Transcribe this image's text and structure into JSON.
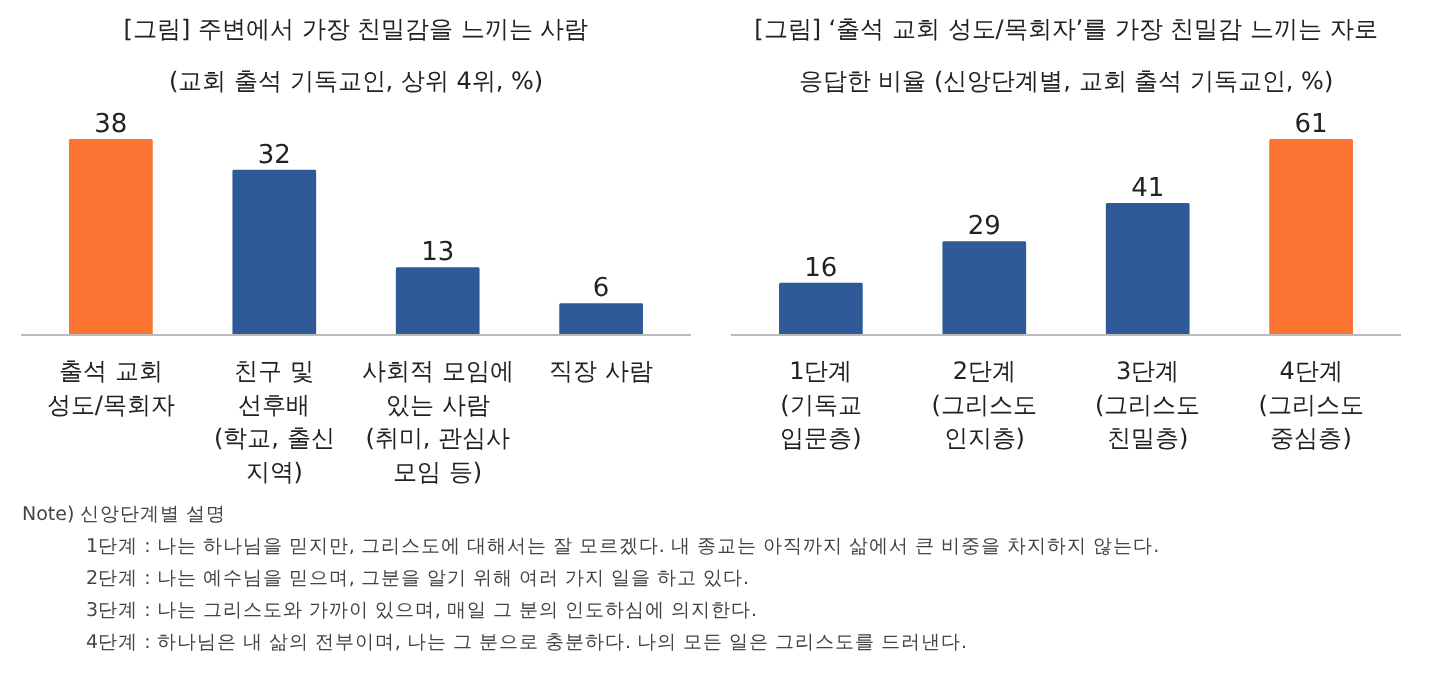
{
  "chart_data": [
    {
      "type": "bar",
      "title": "[그림] 주변에서 가장 친밀감을 느끼는 사람",
      "subtitle": "(교회 출석 기독교인, 상위 4위, %)",
      "categories": [
        "출석 교회\n성도/목회자",
        "친구 및\n선후배\n(학교, 출신\n지역)",
        "사회적 모임에\n있는 사람\n(취미, 관심사\n모임 등)",
        "직장 사람"
      ],
      "values": [
        38,
        32,
        13,
        6
      ],
      "colors": [
        "#fb7431",
        "#2e5a98",
        "#2e5a98",
        "#2e5a98"
      ],
      "data_labels": true,
      "grid": false
    },
    {
      "type": "bar",
      "title": "[그림] ‘출석 교회 성도/목회자’를 가장 친밀감 느끼는 자로",
      "subtitle": "응답한 비율 (신앙단계별, 교회 출석 기독교인, %)",
      "categories": [
        "1단계\n(기독교\n입문층)",
        "2단계\n(그리스도\n인지층)",
        "3단계\n(그리스도\n친밀층)",
        "4단계\n(그리스도\n중심층)"
      ],
      "values": [
        16,
        29,
        41,
        61
      ],
      "colors": [
        "#2e5a98",
        "#2e5a98",
        "#2e5a98",
        "#fb7431"
      ],
      "data_labels": true,
      "grid": false,
      "annotations": [
        "Note) 신앙단계별 설명",
        "1단계 : 나는 하나님을 믿지만, 그리스도에 대해서는 잘 모르겠다. 내 종교는 아직까지 삶에서 큰 비중을 차지하지 않는다.",
        "2단계 : 나는 예수님을 믿으며, 그분을 알기 위해 여러 가지 일을 하고 있다.",
        "3단계 : 나는 그리스도와 가까이 있으며, 매일 그 분의 인도하심에 의지한다.",
        "4단계 : 하나님은 내 삶의 전부이며, 나는 그 분으로 충분하다. 나의 모든 일은 그리스도를 드러낸다."
      ]
    }
  ]
}
